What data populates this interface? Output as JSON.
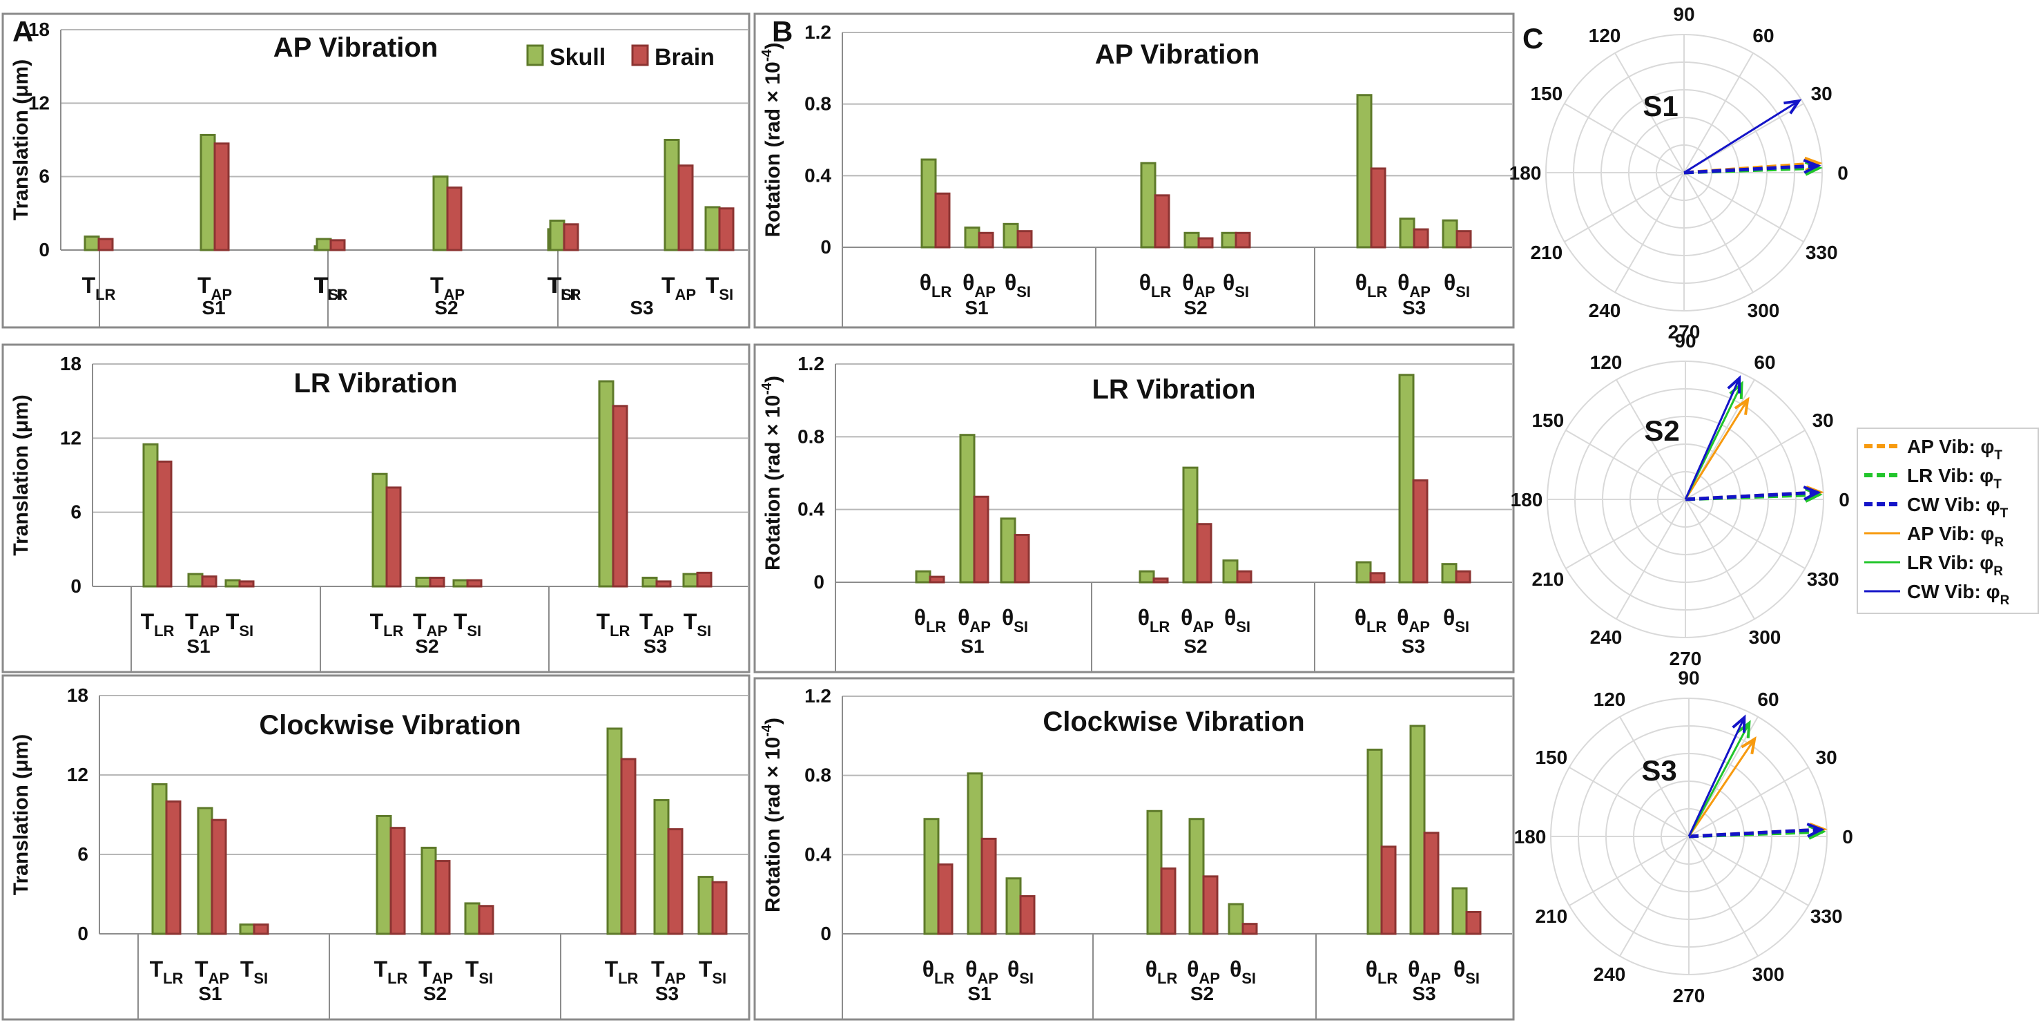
{
  "panel_letters": {
    "a": "A",
    "b": "B",
    "c": "C"
  },
  "colors": {
    "skull_fill": "#9BBB59",
    "skull_edge": "#5E7A2A",
    "brain_fill": "#C0504D",
    "brain_edge": "#8C3432",
    "ap_vib": "#F79A0E",
    "lr_vib": "#22C52B",
    "cw_vib": "#1414C8"
  },
  "chart_data": [
    {
      "id": "A1",
      "type": "bar",
      "title": "AP Vibration",
      "ylabel": "Translation (μm)",
      "ylim": [
        0,
        18
      ],
      "yticks": [
        "0",
        "6",
        "12",
        "18"
      ],
      "categories": [
        [
          "T",
          "LR"
        ],
        [
          "T",
          "AP"
        ],
        [
          "T",
          "SI"
        ],
        [
          "T",
          "LR"
        ],
        [
          "T",
          "AP"
        ],
        [
          "T",
          "SI"
        ],
        [
          "T",
          "LR"
        ],
        [
          "T",
          "AP"
        ],
        [
          "T",
          "SI"
        ]
      ],
      "groups": [
        "S1",
        "S2",
        "S3"
      ],
      "legend": [
        "Skull",
        "Brain"
      ],
      "series": [
        {
          "name": "Skull",
          "values": [
            1.1,
            9.4,
            0.3,
            0.9,
            6.0,
            1.7,
            2.4,
            9.0,
            3.5
          ]
        },
        {
          "name": "Brain",
          "values": [
            0.9,
            8.7,
            0.3,
            0.8,
            5.1,
            1.7,
            2.1,
            6.9,
            3.4
          ]
        }
      ]
    },
    {
      "id": "B1",
      "type": "bar",
      "title": "AP Vibration",
      "ylabel": "Rotation (rad × 10⁻⁴)",
      "ylim": [
        0,
        1.2
      ],
      "yticks": [
        "0",
        "0.4",
        "0.8",
        "1.2"
      ],
      "categories": [
        [
          "θ",
          "LR"
        ],
        [
          "θ",
          "AP"
        ],
        [
          "θ",
          "SI"
        ],
        [
          "θ",
          "LR"
        ],
        [
          "θ",
          "AP"
        ],
        [
          "θ",
          "SI"
        ],
        [
          "θ",
          "LR"
        ],
        [
          "θ",
          "AP"
        ],
        [
          "θ",
          "SI"
        ]
      ],
      "groups": [
        "S1",
        "S2",
        "S3"
      ],
      "series": [
        {
          "name": "Skull",
          "values": [
            0.49,
            0.11,
            0.13,
            0.47,
            0.08,
            0.08,
            0.85,
            0.16,
            0.15
          ]
        },
        {
          "name": "Brain",
          "values": [
            0.3,
            0.08,
            0.09,
            0.29,
            0.05,
            0.08,
            0.44,
            0.1,
            0.09
          ]
        }
      ]
    },
    {
      "id": "A2",
      "type": "bar",
      "title": "LR Vibration",
      "ylabel": "Translation (μm)",
      "ylim": [
        0,
        18
      ],
      "yticks": [
        "0",
        "6",
        "12",
        "18"
      ],
      "categories": [
        [
          "T",
          "LR"
        ],
        [
          "T",
          "AP"
        ],
        [
          "T",
          "SI"
        ],
        [
          "T",
          "LR"
        ],
        [
          "T",
          "AP"
        ],
        [
          "T",
          "SI"
        ],
        [
          "T",
          "LR"
        ],
        [
          "T",
          "AP"
        ],
        [
          "T",
          "SI"
        ]
      ],
      "groups": [
        "S1",
        "S2",
        "S3"
      ],
      "series": [
        {
          "name": "Skull",
          "values": [
            11.5,
            1.0,
            0.5,
            9.1,
            0.7,
            0.5,
            16.6,
            0.7,
            1.0
          ]
        },
        {
          "name": "Brain",
          "values": [
            10.1,
            0.8,
            0.4,
            8.0,
            0.7,
            0.5,
            14.6,
            0.4,
            1.1
          ]
        }
      ]
    },
    {
      "id": "B2",
      "type": "bar",
      "title": "LR Vibration",
      "ylabel": "Rotation (rad × 10⁻⁴)",
      "ylim": [
        0,
        1.2
      ],
      "yticks": [
        "0",
        "0.4",
        "0.8",
        "1.2"
      ],
      "categories": [
        [
          "θ",
          "LR"
        ],
        [
          "θ",
          "AP"
        ],
        [
          "θ",
          "SI"
        ],
        [
          "θ",
          "LR"
        ],
        [
          "θ",
          "AP"
        ],
        [
          "θ",
          "SI"
        ],
        [
          "θ",
          "LR"
        ],
        [
          "θ",
          "AP"
        ],
        [
          "θ",
          "SI"
        ]
      ],
      "groups": [
        "S1",
        "S2",
        "S3"
      ],
      "series": [
        {
          "name": "Skull",
          "values": [
            0.06,
            0.81,
            0.35,
            0.06,
            0.63,
            0.12,
            0.11,
            1.14,
            0.1
          ]
        },
        {
          "name": "Brain",
          "values": [
            0.03,
            0.47,
            0.26,
            0.02,
            0.32,
            0.06,
            0.05,
            0.56,
            0.06
          ]
        }
      ]
    },
    {
      "id": "A3",
      "type": "bar",
      "title": "Clockwise Vibration",
      "ylabel": "Translation (μm)",
      "ylim": [
        0,
        18
      ],
      "yticks": [
        "0",
        "6",
        "12",
        "18"
      ],
      "categories": [
        [
          "T",
          "LR"
        ],
        [
          "T",
          "AP"
        ],
        [
          "T",
          "SI"
        ],
        [
          "T",
          "LR"
        ],
        [
          "T",
          "AP"
        ],
        [
          "T",
          "SI"
        ],
        [
          "T",
          "LR"
        ],
        [
          "T",
          "AP"
        ],
        [
          "T",
          "SI"
        ]
      ],
      "groups": [
        "S1",
        "S2",
        "S3"
      ],
      "series": [
        {
          "name": "Skull",
          "values": [
            11.3,
            9.5,
            0.7,
            8.9,
            6.5,
            2.3,
            15.5,
            10.1,
            4.3
          ]
        },
        {
          "name": "Brain",
          "values": [
            10.0,
            8.6,
            0.7,
            8.0,
            5.5,
            2.1,
            13.2,
            7.9,
            3.9
          ]
        }
      ]
    },
    {
      "id": "B3",
      "type": "bar",
      "title": "Clockwise Vibration",
      "ylabel": "Rotation (rad × 10⁻⁴)",
      "ylim": [
        0,
        1.2
      ],
      "yticks": [
        "0",
        "0.4",
        "0.8",
        "1.2"
      ],
      "categories": [
        [
          "θ",
          "LR"
        ],
        [
          "θ",
          "AP"
        ],
        [
          "θ",
          "SI"
        ],
        [
          "θ",
          "LR"
        ],
        [
          "θ",
          "AP"
        ],
        [
          "θ",
          "SI"
        ],
        [
          "θ",
          "LR"
        ],
        [
          "θ",
          "AP"
        ],
        [
          "θ",
          "SI"
        ]
      ],
      "groups": [
        "S1",
        "S2",
        "S3"
      ],
      "series": [
        {
          "name": "Skull",
          "values": [
            0.58,
            0.81,
            0.28,
            0.62,
            0.58,
            0.15,
            0.93,
            1.05,
            0.23
          ]
        },
        {
          "name": "Brain",
          "values": [
            0.35,
            0.48,
            0.19,
            0.33,
            0.29,
            0.05,
            0.44,
            0.51,
            0.11
          ]
        }
      ]
    },
    {
      "id": "C1",
      "type": "polar",
      "label": "S1",
      "angle_labels": [
        "0",
        "30",
        "60",
        "90",
        "120",
        "150",
        "180",
        "210",
        "240",
        "270",
        "300",
        "330"
      ],
      "vectors": [
        {
          "name": "AP Vib: φT",
          "angle_deg": 4,
          "magnitude": 0.98,
          "style": "dash",
          "color": "#F79A0E"
        },
        {
          "name": "LR Vib: φT",
          "angle_deg": 2,
          "magnitude": 0.98,
          "style": "dash",
          "color": "#22C52B"
        },
        {
          "name": "CW Vib: φT",
          "angle_deg": 3,
          "magnitude": 0.97,
          "style": "dash",
          "color": "#1414C8"
        },
        {
          "name": "CW Vib: φR",
          "angle_deg": 32,
          "magnitude": 0.98,
          "style": "solid",
          "color": "#1414C8"
        }
      ]
    },
    {
      "id": "C2",
      "type": "polar",
      "label": "S2",
      "angle_labels": [
        "0",
        "30",
        "60",
        "90",
        "120",
        "150",
        "180",
        "210",
        "240",
        "270",
        "300",
        "330"
      ],
      "vectors": [
        {
          "name": "AP Vib: φT",
          "angle_deg": 3,
          "magnitude": 0.98,
          "style": "dash",
          "color": "#F79A0E"
        },
        {
          "name": "LR Vib: φT",
          "angle_deg": 2,
          "magnitude": 0.97,
          "style": "dash",
          "color": "#22C52B"
        },
        {
          "name": "CW Vib: φT",
          "angle_deg": 3,
          "magnitude": 0.96,
          "style": "dash",
          "color": "#1414C8"
        },
        {
          "name": "AP Vib: φR",
          "angle_deg": 58,
          "magnitude": 0.85,
          "style": "solid",
          "color": "#F79A0E"
        },
        {
          "name": "LR Vib: φR",
          "angle_deg": 64,
          "magnitude": 0.93,
          "style": "solid",
          "color": "#22C52B"
        },
        {
          "name": "CW Vib: φR",
          "angle_deg": 66,
          "magnitude": 0.96,
          "style": "solid",
          "color": "#1414C8"
        }
      ]
    },
    {
      "id": "C3",
      "type": "polar",
      "label": "S3",
      "angle_labels": [
        "0",
        "30",
        "60",
        "90",
        "120",
        "150",
        "180",
        "210",
        "240",
        "270",
        "300",
        "330"
      ],
      "vectors": [
        {
          "name": "AP Vib: φT",
          "angle_deg": 3,
          "magnitude": 0.98,
          "style": "dash",
          "color": "#F79A0E"
        },
        {
          "name": "LR Vib: φT",
          "angle_deg": 2,
          "magnitude": 0.97,
          "style": "dash",
          "color": "#22C52B"
        },
        {
          "name": "CW Vib: φT",
          "angle_deg": 3,
          "magnitude": 0.96,
          "style": "dash",
          "color": "#1414C8"
        },
        {
          "name": "AP Vib: φR",
          "angle_deg": 56,
          "magnitude": 0.85,
          "style": "solid",
          "color": "#F79A0E"
        },
        {
          "name": "LR Vib: φR",
          "angle_deg": 62,
          "magnitude": 0.93,
          "style": "solid",
          "color": "#22C52B"
        },
        {
          "name": "CW Vib: φR",
          "angle_deg": 65,
          "magnitude": 0.95,
          "style": "solid",
          "color": "#1414C8"
        }
      ]
    }
  ],
  "polar_legend": [
    {
      "label": "AP Vib: φ",
      "sub": "T",
      "color": "#F79A0E",
      "style": "dash"
    },
    {
      "label": "LR Vib: φ",
      "sub": "T",
      "color": "#22C52B",
      "style": "dash"
    },
    {
      "label": "CW Vib: φ",
      "sub": "T",
      "color": "#1414C8",
      "style": "dash"
    },
    {
      "label": "AP Vib: φ",
      "sub": "R",
      "color": "#F79A0E",
      "style": "solid"
    },
    {
      "label": "LR Vib: φ",
      "sub": "R",
      "color": "#22C52B",
      "style": "solid"
    },
    {
      "label": "CW Vib: φ",
      "sub": "R",
      "color": "#1414C8",
      "style": "solid"
    }
  ]
}
